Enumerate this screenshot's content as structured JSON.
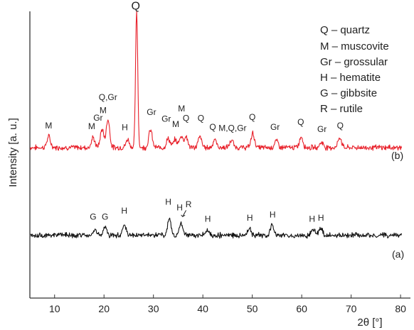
{
  "chart_data": {
    "type": "line",
    "title": "",
    "xlabel": "2θ [°]",
    "ylabel": "Intensity [a. u.]",
    "xlim": [
      5,
      82
    ],
    "ylim": [
      0,
      100
    ],
    "x_ticks": [
      "10",
      "20",
      "30",
      "40",
      "50",
      "60",
      "70",
      "80"
    ],
    "legend": [
      "Q – quartz",
      "M – muscovite",
      "Gr – grossular",
      "H – hematite",
      "G – gibbsite",
      "R – rutile"
    ],
    "series": [
      {
        "name": "(b)",
        "color": "#e8202a",
        "baseline": 52.5,
        "peaks": [
          {
            "x": 8.8,
            "y": 56.3
          },
          {
            "x": 17.8,
            "y": 55.9
          },
          {
            "x": 19.6,
            "y": 58.9
          },
          {
            "x": 20.8,
            "y": 62.3
          },
          {
            "x": 24.8,
            "y": 55.3
          },
          {
            "x": 26.6,
            "y": 100
          },
          {
            "x": 29.4,
            "y": 58.7
          },
          {
            "x": 33.0,
            "y": 55.7
          },
          {
            "x": 34.4,
            "y": 55.3
          },
          {
            "x": 35.6,
            "y": 56.5
          },
          {
            "x": 36.6,
            "y": 56.3
          },
          {
            "x": 39.4,
            "y": 56.3
          },
          {
            "x": 42.4,
            "y": 55.3
          },
          {
            "x": 45.8,
            "y": 55.0
          },
          {
            "x": 50.1,
            "y": 57.5
          },
          {
            "x": 54.9,
            "y": 54.9
          },
          {
            "x": 59.9,
            "y": 56.3
          },
          {
            "x": 64.0,
            "y": 54.4
          },
          {
            "x": 67.7,
            "y": 56.1
          }
        ]
      },
      {
        "name": "(a)",
        "color": "#111111",
        "baseline": 21.9,
        "peaks": [
          {
            "x": 18.2,
            "y": 23.8
          },
          {
            "x": 20.2,
            "y": 24.7
          },
          {
            "x": 24.1,
            "y": 25.6
          },
          {
            "x": 33.2,
            "y": 27.5
          },
          {
            "x": 35.6,
            "y": 26.0
          },
          {
            "x": 40.8,
            "y": 23.6
          },
          {
            "x": 49.4,
            "y": 24.4
          },
          {
            "x": 54.0,
            "y": 25.4
          },
          {
            "x": 62.4,
            "y": 24.2
          },
          {
            "x": 63.8,
            "y": 24.7
          }
        ]
      }
    ],
    "annotations_b": [
      {
        "text": "M",
        "x": 8.8,
        "y": 59.1
      },
      {
        "text": "M",
        "x": 17.5,
        "y": 58.9
      },
      {
        "text": "Gr",
        "x": 18.8,
        "y": 61.9
      },
      {
        "text": "M",
        "x": 19.8,
        "y": 64.5
      },
      {
        "text": "Q,Gr",
        "x": 20.8,
        "y": 69.1
      },
      {
        "text": "Q",
        "x": 26.4,
        "y": 100.6
      },
      {
        "text": "H",
        "x": 24.2,
        "y": 58.5
      },
      {
        "text": "Gr",
        "x": 29.6,
        "y": 63.8
      },
      {
        "text": "Gr",
        "x": 32.6,
        "y": 61.5
      },
      {
        "text": "M",
        "x": 34.5,
        "y": 59.6
      },
      {
        "text": "M",
        "x": 35.7,
        "y": 65.1
      },
      {
        "text": "Q",
        "x": 36.6,
        "y": 61.7
      },
      {
        "text": "Q",
        "x": 39.6,
        "y": 61.7
      },
      {
        "text": "Q",
        "x": 42.0,
        "y": 58.7
      },
      {
        "text": "M,Q,Gr",
        "x": 46.0,
        "y": 58.3
      },
      {
        "text": "Q",
        "x": 50.0,
        "y": 62.1
      },
      {
        "text": "Gr",
        "x": 54.6,
        "y": 58.7
      },
      {
        "text": "Q",
        "x": 59.8,
        "y": 60.4
      },
      {
        "text": "Gr",
        "x": 64.1,
        "y": 57.9
      },
      {
        "text": "Q",
        "x": 67.8,
        "y": 59.1
      }
    ],
    "annotations_a": [
      {
        "text": "G",
        "x": 17.8,
        "y": 27.4
      },
      {
        "text": "G",
        "x": 20.2,
        "y": 27.4
      },
      {
        "text": "H",
        "x": 24.1,
        "y": 29.4
      },
      {
        "text": "H",
        "x": 33.0,
        "y": 32.6
      },
      {
        "text": "H",
        "x": 35.3,
        "y": 30.6
      },
      {
        "text": "R",
        "x": 37.1,
        "y": 31.7
      },
      {
        "text": "H",
        "x": 41.0,
        "y": 26.6
      },
      {
        "text": "H",
        "x": 49.5,
        "y": 27.0
      },
      {
        "text": "H",
        "x": 54.1,
        "y": 28.1
      },
      {
        "text": "H",
        "x": 62.1,
        "y": 26.6
      },
      {
        "text": "H",
        "x": 63.9,
        "y": 27.0
      }
    ]
  }
}
